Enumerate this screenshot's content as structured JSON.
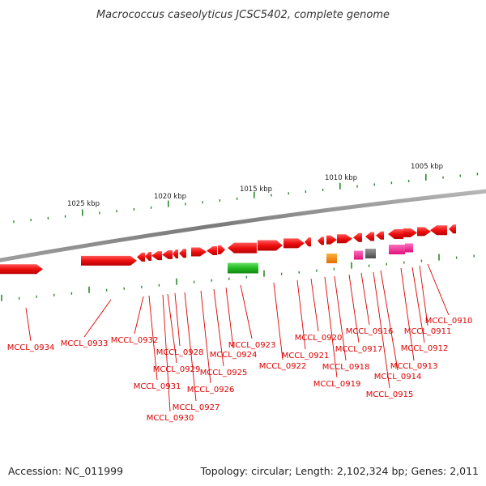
{
  "title": "Macrococcus caseolyticus JCSC5402, complete genome",
  "footer": {
    "accession": "Accession: NC_011999",
    "summary": "Topology: circular; Length: 2,102,324 bp; Genes: 2,011"
  },
  "colors": {
    "backbone": "#8a8a8a",
    "tick": "#2a8a2a",
    "label": "#dd0000",
    "cds_forward": "#ee1111",
    "rna": "#22bb22",
    "orange": "#ff8800",
    "pink": "#ff2a9a",
    "grey": "#666666"
  },
  "scale": {
    "unit": "kbp",
    "labeled_ticks": [
      "1005 kbp",
      "1010 kbp",
      "1015 kbp",
      "1020 kbp",
      "1025 kbp"
    ]
  },
  "genes": [
    "MCCL_0910",
    "MCCL_0911",
    "MCCL_0912",
    "MCCL_0913",
    "MCCL_0914",
    "MCCL_0915",
    "MCCL_0916",
    "MCCL_0917",
    "MCCL_0918",
    "MCCL_0919",
    "MCCL_0920",
    "MCCL_0921",
    "MCCL_0922",
    "MCCL_0923",
    "MCCL_0924",
    "MCCL_0925",
    "MCCL_0926",
    "MCCL_0927",
    "MCCL_0928",
    "MCCL_0929",
    "MCCL_0930",
    "MCCL_0931",
    "MCCL_0932",
    "MCCL_0933",
    "MCCL_0934"
  ]
}
